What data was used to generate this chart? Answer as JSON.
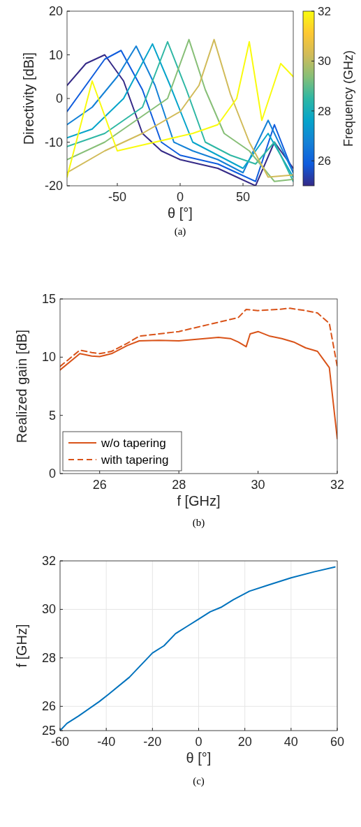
{
  "chart_data": [
    {
      "type": "line",
      "xlabel": "θ [°]",
      "ylabel": "Directivity [dBi]",
      "clabel": "Frequency (GHz)",
      "clim": [
        25,
        32
      ],
      "cticks": [
        26,
        28,
        30,
        32
      ],
      "xlim": [
        -90,
        90
      ],
      "xticks": [
        -50,
        0,
        50
      ],
      "ylim": [
        -20,
        20
      ],
      "yticks": [
        -20,
        -10,
        0,
        10,
        20
      ],
      "annotations": [
        "(a)"
      ],
      "series": [
        {
          "color": "#352a87",
          "x": [
            -90,
            -75,
            -60,
            -45,
            -30,
            -15,
            0,
            15,
            30,
            45,
            60,
            75,
            90
          ],
          "values": [
            3,
            8,
            10,
            4,
            -8,
            -12,
            -14,
            -15,
            -16,
            -18,
            -20,
            -10,
            -16
          ]
        },
        {
          "color": "#0f5cdd",
          "x": [
            -90,
            -75,
            -60,
            -47,
            -30,
            -15,
            0,
            15,
            30,
            45,
            60,
            75,
            90
          ],
          "values": [
            -3,
            3,
            9,
            11,
            2,
            -10,
            -13,
            -14,
            -15,
            -17,
            -19,
            -6,
            -17
          ]
        },
        {
          "color": "#1481d6",
          "x": [
            -90,
            -70,
            -50,
            -35,
            -20,
            -5,
            10,
            30,
            50,
            70,
            90
          ],
          "values": [
            -6,
            -2,
            5,
            12,
            3,
            -10,
            -12,
            -14,
            -17,
            -5,
            -17
          ]
        },
        {
          "color": "#06a4ca",
          "x": [
            -90,
            -70,
            -45,
            -22,
            -8,
            10,
            30,
            50,
            70,
            90
          ],
          "values": [
            -9,
            -7,
            0,
            12.5,
            3,
            -10,
            -13,
            -16,
            -8,
            -18
          ]
        },
        {
          "color": "#2eb7a4",
          "x": [
            -90,
            -60,
            -30,
            -10,
            5,
            20,
            40,
            60,
            75,
            90
          ],
          "values": [
            -11,
            -8,
            -2,
            13,
            2,
            -10,
            -13,
            -15,
            -10,
            -19
          ]
        },
        {
          "color": "#87bf77",
          "x": [
            -90,
            -60,
            -30,
            -10,
            7,
            20,
            35,
            55,
            75,
            90
          ],
          "values": [
            -14,
            -10,
            -4,
            0,
            13.5,
            2,
            -8,
            -12,
            -19,
            -18.5
          ]
        },
        {
          "color": "#d1bb59",
          "x": [
            -90,
            -60,
            -30,
            0,
            15,
            27,
            40,
            55,
            70,
            90
          ],
          "values": [
            -17,
            -12,
            -8,
            -3,
            3,
            13.5,
            1,
            -10,
            -18,
            -17.5
          ]
        },
        {
          "color": "#f9fb0e",
          "x": [
            -90,
            -70,
            -50,
            -20,
            10,
            30,
            45,
            55,
            65,
            80,
            90
          ],
          "values": [
            -18,
            4,
            -12,
            -10,
            -8,
            -6,
            0,
            13,
            -5,
            8,
            5
          ]
        }
      ]
    },
    {
      "type": "line",
      "xlabel": "f [GHz]",
      "ylabel": "Realized gain [dB]",
      "xlim": [
        25,
        32
      ],
      "xticks": [
        26,
        28,
        30,
        32
      ],
      "ylim": [
        0,
        15
      ],
      "yticks": [
        0,
        5,
        10,
        15
      ],
      "legend": "bottom left",
      "annotations": [
        "(b)"
      ],
      "series": [
        {
          "name": "w/o tapering",
          "color": "#d95319",
          "line_style": "solid",
          "x": [
            25,
            25.5,
            25.8,
            26,
            26.3,
            26.7,
            27,
            27.5,
            28,
            28.5,
            29,
            29.3,
            29.5,
            29.7,
            29.8,
            30,
            30.3,
            30.6,
            30.9,
            31.2,
            31.5,
            31.8,
            32
          ],
          "values": [
            8.9,
            10.3,
            10.1,
            10.05,
            10.3,
            11,
            11.4,
            11.45,
            11.4,
            11.55,
            11.7,
            11.6,
            11.3,
            10.9,
            12,
            12.2,
            11.8,
            11.6,
            11.3,
            10.8,
            10.5,
            9.1,
            3
          ]
        },
        {
          "name": "with tapering",
          "color": "#d95319",
          "line_style": "dashed",
          "x": [
            25,
            25.5,
            25.8,
            26,
            26.3,
            26.7,
            27,
            27.5,
            28,
            28.5,
            29,
            29.5,
            29.7,
            30,
            30.5,
            30.8,
            31.2,
            31.5,
            31.8,
            32
          ],
          "values": [
            9.2,
            10.6,
            10.4,
            10.3,
            10.5,
            11.2,
            11.8,
            12,
            12.2,
            12.6,
            13,
            13.4,
            14.1,
            14,
            14.1,
            14.2,
            14,
            13.8,
            12.9,
            9.2
          ]
        }
      ]
    },
    {
      "type": "line",
      "xlabel": "θ [°]",
      "ylabel": "f [GHz]",
      "xlim": [
        -60,
        60
      ],
      "xticks": [
        -60,
        -40,
        -20,
        0,
        20,
        40,
        60
      ],
      "ylim": [
        25,
        32
      ],
      "yticks": [
        25,
        26,
        28,
        30,
        32
      ],
      "grid": true,
      "annotations": [
        "(c)"
      ],
      "series": [
        {
          "color": "#0072bd",
          "x": [
            -60,
            -57,
            -52,
            -43,
            -39,
            -30,
            -20,
            -15,
            -10,
            -5,
            0,
            5,
            10,
            15,
            22,
            30,
            40,
            50,
            59
          ],
          "values": [
            25,
            25.3,
            25.6,
            26.2,
            26.5,
            27.2,
            28.2,
            28.5,
            29,
            29.3,
            29.6,
            29.9,
            30.1,
            30.4,
            30.75,
            31,
            31.3,
            31.55,
            31.75
          ]
        }
      ]
    }
  ]
}
